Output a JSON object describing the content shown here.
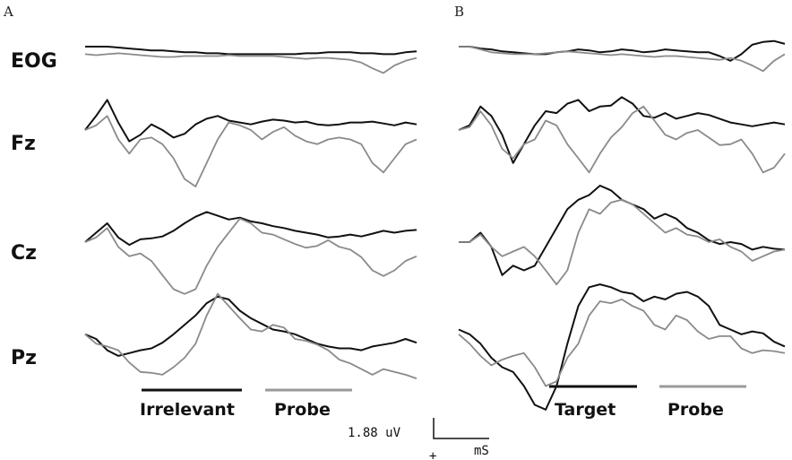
{
  "panels": [
    {
      "label": "A",
      "conditions": [
        "Irrelevant",
        "Probe"
      ]
    },
    {
      "label": "B",
      "conditions": [
        "Target",
        "Probe"
      ]
    }
  ],
  "channels": [
    "EOG",
    "Fz",
    "Cz",
    "Pz"
  ],
  "scale": {
    "amplitude": "1.88 uV",
    "time_unit": "mS",
    "polarity": "+"
  },
  "colors": {
    "black_trace": "#111111",
    "gray_trace": "#8a8a8a",
    "black_bar": "#111111",
    "gray_bar": "#9a9a9a"
  },
  "chart_data": {
    "type": "line",
    "title": "",
    "xlabel": "",
    "ylabel": "",
    "x_label_visible": false,
    "panels": [
      {
        "panel": "A",
        "channels": [
          {
            "name": "EOG",
            "series": [
              {
                "name": "Irrelevant",
                "color": "black",
                "values": [
                  0,
                  0,
                  0,
                  -0.1,
                  -0.2,
                  -0.3,
                  -0.4,
                  -0.4,
                  -0.5,
                  -0.6,
                  -0.6,
                  -0.7,
                  -0.7,
                  -0.8,
                  -0.8,
                  -0.8,
                  -0.8,
                  -0.8,
                  -0.8,
                  -0.8,
                  -0.7,
                  -0.7,
                  -0.6,
                  -0.6,
                  -0.6,
                  -0.7,
                  -0.7,
                  -0.8,
                  -0.8,
                  -0.6,
                  -0.5
                ]
              },
              {
                "name": "Probe",
                "color": "gray",
                "values": [
                  -0.8,
                  -0.9,
                  -0.8,
                  -0.7,
                  -0.8,
                  -0.9,
                  -1.0,
                  -1.1,
                  -1.1,
                  -1.0,
                  -1.0,
                  -1.0,
                  -1.0,
                  -0.9,
                  -1.0,
                  -1.0,
                  -1.0,
                  -1.0,
                  -1.1,
                  -1.2,
                  -1.3,
                  -1.2,
                  -1.2,
                  -1.3,
                  -1.4,
                  -1.7,
                  -2.3,
                  -2.8,
                  -2.0,
                  -1.5,
                  -1.2
                ]
              }
            ]
          },
          {
            "name": "Fz",
            "series": [
              {
                "name": "Irrelevant",
                "color": "black",
                "values": [
                  0,
                  1.5,
                  3.2,
                  0.8,
                  -1.2,
                  -0.5,
                  0.6,
                  0,
                  -0.8,
                  -0.4,
                  0.6,
                  1.2,
                  1.5,
                  1.0,
                  0.8,
                  0.6,
                  0.9,
                  1.1,
                  1.0,
                  0.8,
                  0.9,
                  0.6,
                  0.5,
                  0.6,
                  0.8,
                  0.8,
                  0.9,
                  0.7,
                  0.5,
                  0.8,
                  0.6
                ]
              },
              {
                "name": "Probe",
                "color": "gray",
                "values": [
                  0,
                  0.5,
                  1.5,
                  -1.0,
                  -2.5,
                  -1.0,
                  -0.8,
                  -1.5,
                  -3.0,
                  -5.2,
                  -6.0,
                  -3.5,
                  -1.0,
                  0.8,
                  0.5,
                  0,
                  -1.0,
                  -0.2,
                  0.3,
                  -0.6,
                  -1.2,
                  -1.5,
                  -1.0,
                  -0.8,
                  -1.0,
                  -1.5,
                  -3.5,
                  -4.5,
                  -3.0,
                  -1.5,
                  -1.0
                ]
              }
            ]
          },
          {
            "name": "Cz",
            "series": [
              {
                "name": "Irrelevant",
                "color": "black",
                "values": [
                  0,
                  1.0,
                  2.0,
                  0.5,
                  -0.3,
                  0.3,
                  0.4,
                  0.6,
                  1.2,
                  2.0,
                  2.7,
                  3.2,
                  2.8,
                  2.4,
                  2.6,
                  2.2,
                  2.0,
                  1.7,
                  1.5,
                  1.2,
                  1.0,
                  0.8,
                  0.5,
                  0.6,
                  0.8,
                  0.6,
                  0.9,
                  1.2,
                  1.0,
                  1.2,
                  1.3
                ]
              },
              {
                "name": "Probe",
                "color": "gray",
                "values": [
                  0,
                  0.5,
                  1.5,
                  -0.5,
                  -1.5,
                  -1.2,
                  -2.0,
                  -3.5,
                  -5.0,
                  -5.5,
                  -5.0,
                  -2.5,
                  -0.5,
                  1.0,
                  2.5,
                  2.0,
                  1.0,
                  0.8,
                  0.3,
                  -0.2,
                  -0.6,
                  -0.4,
                  0.2,
                  -0.5,
                  -0.8,
                  -1.6,
                  -3.0,
                  -3.6,
                  -3.0,
                  -2.0,
                  -1.5
                ]
              }
            ]
          },
          {
            "name": "Pz",
            "series": [
              {
                "name": "Irrelevant",
                "color": "black",
                "values": [
                  0.5,
                  0,
                  -1.2,
                  -1.8,
                  -1.5,
                  -1.2,
                  -1.0,
                  -0.4,
                  0.5,
                  1.5,
                  2.5,
                  3.8,
                  4.5,
                  4.2,
                  3.0,
                  2.2,
                  1.6,
                  1.0,
                  0.8,
                  0.5,
                  0,
                  -0.5,
                  -0.8,
                  -1.0,
                  -1.0,
                  -1.2,
                  -0.8,
                  -0.6,
                  -0.4,
                  0,
                  -0.4
                ]
              },
              {
                "name": "Probe",
                "color": "gray",
                "values": [
                  0.5,
                  -0.5,
                  -0.8,
                  -1.2,
                  -2.5,
                  -3.5,
                  -3.6,
                  -3.8,
                  -3.0,
                  -2.0,
                  -0.5,
                  2.5,
                  4.8,
                  3.5,
                  2.2,
                  1.0,
                  0.8,
                  1.5,
                  1.2,
                  0,
                  -0.2,
                  -0.6,
                  -1.2,
                  -2.2,
                  -2.6,
                  -3.2,
                  -3.8,
                  -3.2,
                  -3.5,
                  -3.8,
                  -4.2
                ]
              }
            ]
          }
        ]
      },
      {
        "panel": "B",
        "channels": [
          {
            "name": "EOG",
            "series": [
              {
                "name": "Target",
                "color": "black",
                "values": [
                  0,
                  0,
                  -0.2,
                  -0.3,
                  -0.5,
                  -0.6,
                  -0.7,
                  -0.8,
                  -0.8,
                  -0.6,
                  -0.5,
                  -0.3,
                  -0.4,
                  -0.6,
                  -0.5,
                  -0.3,
                  -0.4,
                  -0.6,
                  -0.5,
                  -0.3,
                  -0.4,
                  -0.5,
                  -0.6,
                  -0.6,
                  -1.0,
                  -1.5,
                  -0.8,
                  0.2,
                  0.5,
                  0.6,
                  0.3
                ]
              },
              {
                "name": "Probe",
                "color": "gray",
                "values": [
                  0,
                  0,
                  -0.3,
                  -0.6,
                  -0.7,
                  -0.8,
                  -0.8,
                  -0.8,
                  -0.7,
                  -0.6,
                  -0.5,
                  -0.6,
                  -0.7,
                  -0.8,
                  -0.9,
                  -0.8,
                  -0.9,
                  -1.0,
                  -1.1,
                  -1.0,
                  -1.0,
                  -1.1,
                  -1.2,
                  -1.3,
                  -1.4,
                  -1.2,
                  -1.5,
                  -2.0,
                  -2.6,
                  -1.5,
                  -0.8
                ]
              }
            ]
          },
          {
            "name": "Fz",
            "series": [
              {
                "name": "Target",
                "color": "black",
                "values": [
                  0,
                  0.5,
                  2.5,
                  1.5,
                  -0.5,
                  -3.5,
                  -1.5,
                  0.5,
                  2.0,
                  1.8,
                  2.8,
                  3.2,
                  2.0,
                  2.5,
                  2.6,
                  3.5,
                  2.8,
                  1.5,
                  1.3,
                  1.8,
                  1.2,
                  1.5,
                  1.8,
                  1.6,
                  1.2,
                  0.8,
                  0.6,
                  0.4,
                  0.6,
                  0.8,
                  0.6
                ]
              },
              {
                "name": "Probe",
                "color": "gray",
                "values": [
                  0,
                  0.3,
                  2.0,
                  0.5,
                  -2.0,
                  -3.0,
                  -1.5,
                  -1.0,
                  1.0,
                  0.5,
                  -1.5,
                  -3.0,
                  -4.5,
                  -2.5,
                  -0.8,
                  0.3,
                  1.8,
                  2.5,
                  1.0,
                  -0.5,
                  -1.0,
                  -0.3,
                  0,
                  -0.8,
                  -1.6,
                  -1.5,
                  -1.0,
                  -2.5,
                  -4.5,
                  -4.0,
                  -2.5
                ]
              }
            ]
          },
          {
            "name": "Cz",
            "series": [
              {
                "name": "Target",
                "color": "black",
                "values": [
                  0,
                  0,
                  1.0,
                  -0.5,
                  -3.5,
                  -2.5,
                  -3.0,
                  -2.5,
                  -0.5,
                  1.5,
                  3.5,
                  4.5,
                  5.0,
                  6.0,
                  5.5,
                  4.5,
                  4.0,
                  3.5,
                  2.5,
                  3.0,
                  2.5,
                  1.5,
                  1.0,
                  0.2,
                  -0.2,
                  0,
                  -0.2,
                  -0.8,
                  -0.5,
                  -0.7,
                  -0.8
                ]
              },
              {
                "name": "Probe",
                "color": "gray",
                "values": [
                  0,
                  0,
                  0.8,
                  -0.5,
                  -1.5,
                  -1.0,
                  -0.5,
                  -1.5,
                  -3.0,
                  -4.5,
                  -3.0,
                  1.0,
                  3.5,
                  3.0,
                  4.2,
                  4.5,
                  4.0,
                  3.0,
                  2.0,
                  1.0,
                  1.5,
                  0.8,
                  0.6,
                  0,
                  0.3,
                  -0.5,
                  -1.0,
                  -2.0,
                  -1.5,
                  -1.0,
                  -0.8
                ]
              }
            ]
          },
          {
            "name": "Pz",
            "series": [
              {
                "name": "Target",
                "color": "black",
                "values": [
                  1.0,
                  0.5,
                  -0.5,
                  -2.0,
                  -3.0,
                  -3.5,
                  -5.0,
                  -7.0,
                  -7.5,
                  -5.0,
                  -0.5,
                  3.5,
                  5.5,
                  5.8,
                  5.5,
                  5.0,
                  4.8,
                  4.0,
                  4.5,
                  4.2,
                  4.8,
                  5.0,
                  4.5,
                  3.5,
                  1.5,
                  1.0,
                  0.5,
                  0.8,
                  0.6,
                  -0.3,
                  -0.8
                ]
              },
              {
                "name": "Probe",
                "color": "gray",
                "values": [
                  0.5,
                  -0.5,
                  -1.8,
                  -2.8,
                  -2.2,
                  -1.8,
                  -1.5,
                  -3.0,
                  -5.0,
                  -4.5,
                  -2.0,
                  -0.5,
                  2.5,
                  4.0,
                  3.8,
                  4.2,
                  3.5,
                  3.0,
                  1.5,
                  1.0,
                  2.5,
                  2.0,
                  0.8,
                  0,
                  0.3,
                  0.3,
                  -1.0,
                  -1.5,
                  -1.2,
                  -1.3,
                  -1.5
                ]
              }
            ]
          }
        ]
      }
    ],
    "grid": false,
    "legend": "none"
  }
}
